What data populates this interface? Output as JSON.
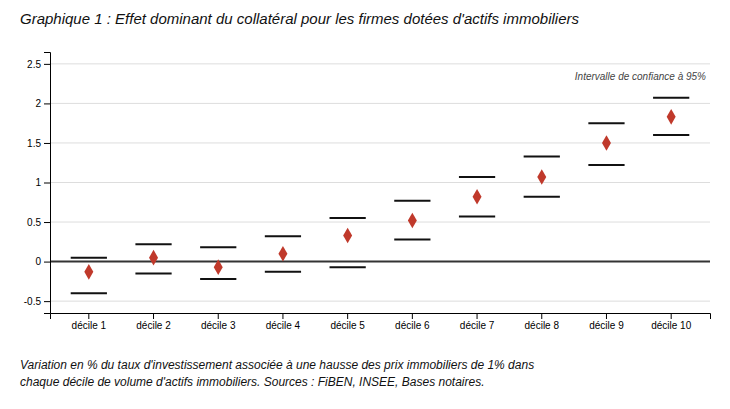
{
  "chart_data": {
    "type": "dot",
    "title": "Graphique 1 : Effet dominant du collatéral pour les firmes dotées d'actifs immobiliers",
    "footnote": "Variation en % du taux d'investissement associée à une hausse des prix immobiliers de 1% dans\nchaque décile de volume d'actifs immobiliers. Sources : FiBEN, INSEE, Bases notaires.",
    "annotation": "Intervalle de confiance à 95%",
    "categories": [
      "décile 1",
      "décile 2",
      "décile 3",
      "décile 4",
      "décile 5",
      "décile 6",
      "décile 7",
      "décile 8",
      "décile 9",
      "décile 10"
    ],
    "values": [
      -0.13,
      0.05,
      -0.07,
      0.1,
      0.33,
      0.52,
      0.82,
      1.07,
      1.5,
      1.83
    ],
    "ci_upper": [
      0.05,
      0.22,
      0.18,
      0.32,
      0.55,
      0.77,
      1.07,
      1.33,
      1.75,
      2.07
    ],
    "ci_lower": [
      -0.4,
      -0.15,
      -0.22,
      -0.13,
      -0.07,
      0.28,
      0.57,
      0.82,
      1.22,
      1.6
    ],
    "color": "#c0392b",
    "marker": "diamond",
    "ylim": [
      -0.65,
      2.65
    ],
    "yticks": [
      -0.5,
      0,
      0.5,
      1,
      1.5,
      2,
      2.5
    ],
    "grid": true
  }
}
